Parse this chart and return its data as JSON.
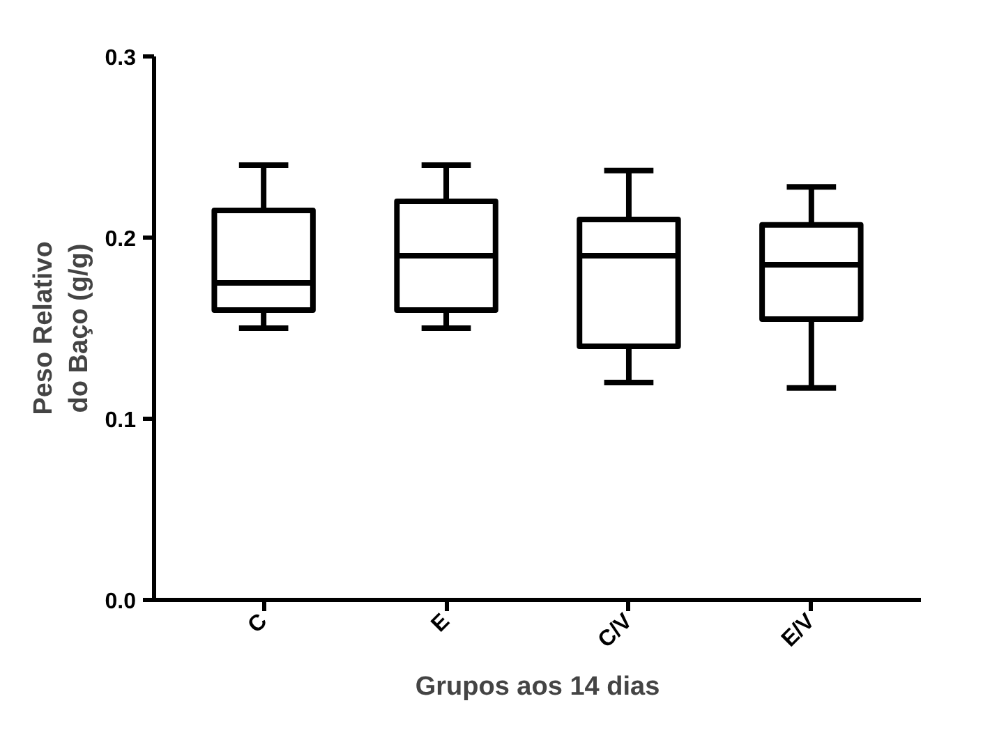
{
  "chart_data": {
    "type": "box",
    "xlabel": "Grupos aos 14 dias",
    "ylabel": "Peso Relativo\ndo Baço (g/g)",
    "categories": [
      "C",
      "E",
      "C/V",
      "E/V"
    ],
    "boxes": [
      {
        "low": 0.15,
        "q1": 0.16,
        "median": 0.175,
        "q3": 0.215,
        "high": 0.24
      },
      {
        "low": 0.15,
        "q1": 0.16,
        "median": 0.19,
        "q3": 0.22,
        "high": 0.24
      },
      {
        "low": 0.12,
        "q1": 0.14,
        "median": 0.19,
        "q3": 0.21,
        "high": 0.237
      },
      {
        "low": 0.117,
        "q1": 0.155,
        "median": 0.185,
        "q3": 0.207,
        "high": 0.228
      }
    ],
    "color": "#000000",
    "ylim": [
      0,
      0.3
    ],
    "yticks": [
      {
        "value": 0,
        "label": "0.0"
      },
      0.1,
      0.2,
      0.3
    ],
    "grid": false
  }
}
